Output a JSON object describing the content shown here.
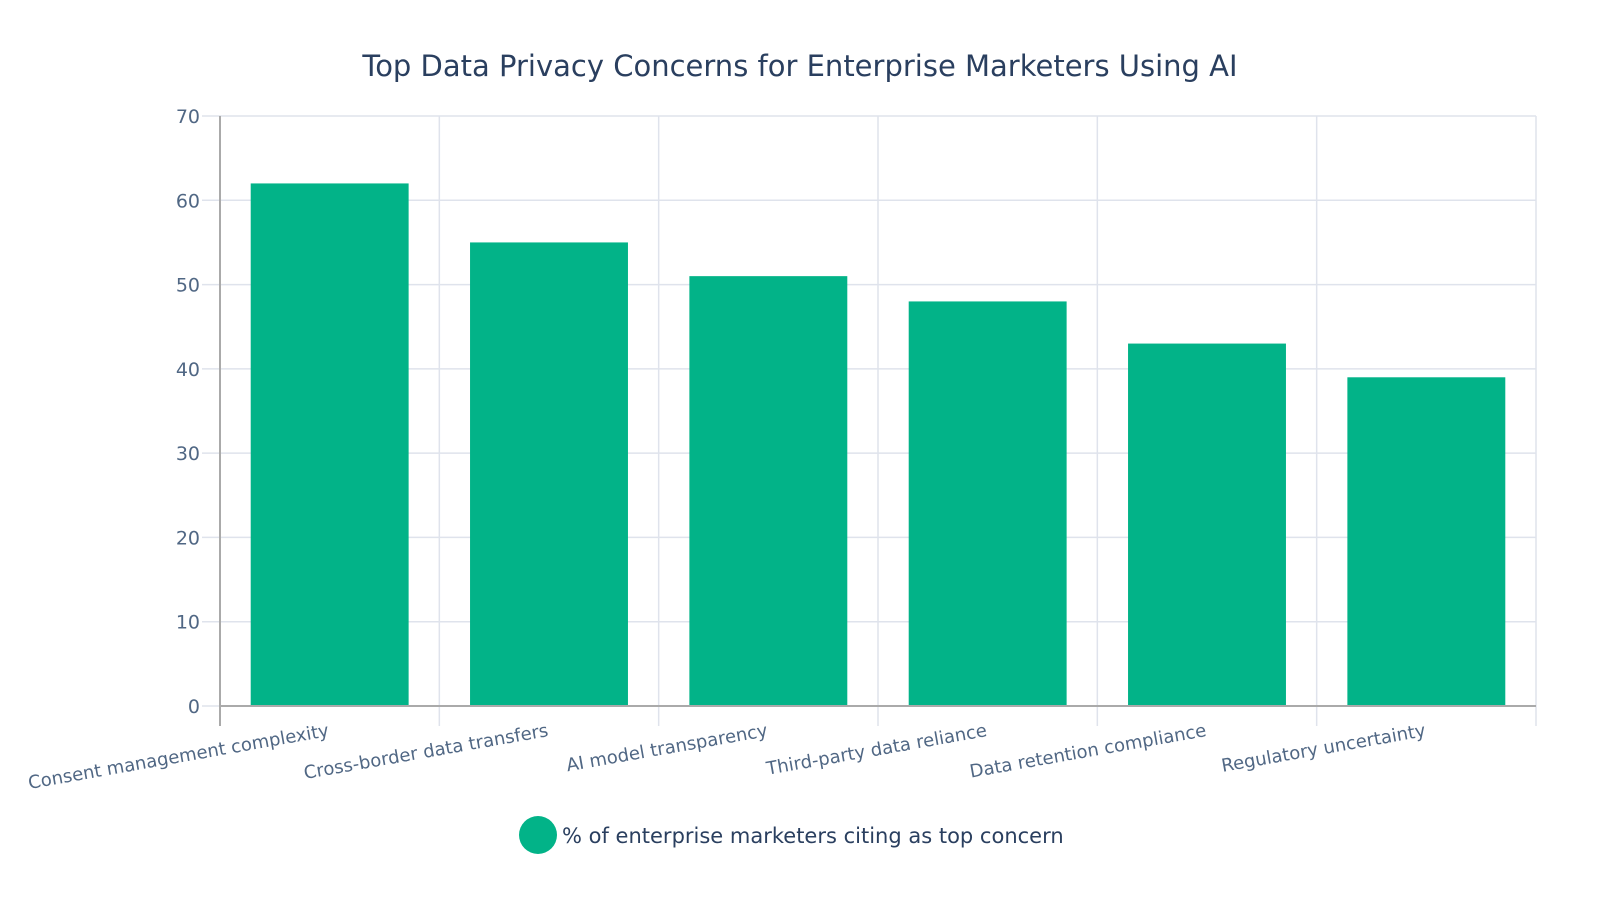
{
  "chart_data": {
    "type": "bar",
    "title": "Top Data Privacy Concerns for Enterprise Marketers Using AI",
    "categories": [
      "Consent management complexity",
      "Cross-border data transfers",
      "AI model transparency",
      "Third-party data reliance",
      "Data retention compliance",
      "Regulatory uncertainty"
    ],
    "series": [
      {
        "name": "% of enterprise marketers citing as top concern",
        "values": [
          62,
          55,
          51,
          48,
          43,
          39
        ],
        "color": "#02b388"
      }
    ],
    "xlabel": "",
    "ylabel": "",
    "ylim": [
      0,
      70
    ],
    "yticks": [
      0,
      10,
      20,
      30,
      40,
      50,
      60,
      70
    ],
    "grid": true,
    "legend": "bottom-center"
  }
}
